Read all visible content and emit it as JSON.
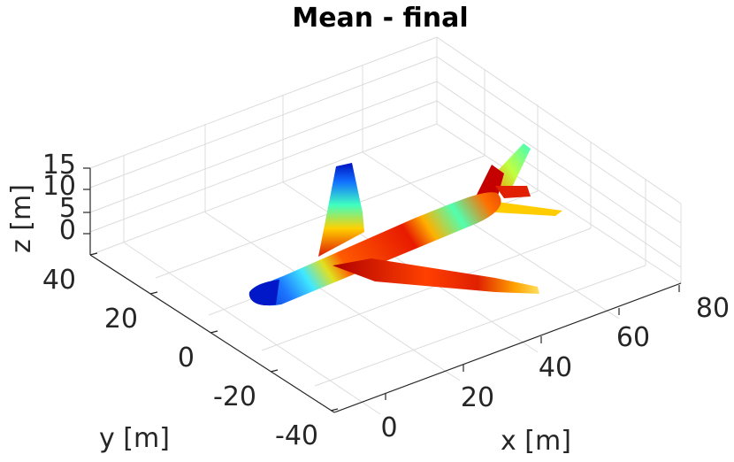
{
  "chart_data": {
    "type": "surface",
    "title": "Mean - final",
    "xlabel": "x [m]",
    "ylabel": "y [m]",
    "zlabel": "z [m]",
    "xlim": [
      -10,
      85
    ],
    "ylim": [
      -40,
      45
    ],
    "zlim": [
      -5,
      15
    ],
    "x_ticks": [
      "0",
      "20",
      "40",
      "60",
      "80"
    ],
    "y_ticks": [
      "-40",
      "-20",
      "0",
      "20",
      "40"
    ],
    "z_ticks": [
      "0",
      "5",
      "10",
      "15"
    ],
    "grid": true,
    "colormap": "jet",
    "object": "aircraft surface colored by mean value"
  }
}
